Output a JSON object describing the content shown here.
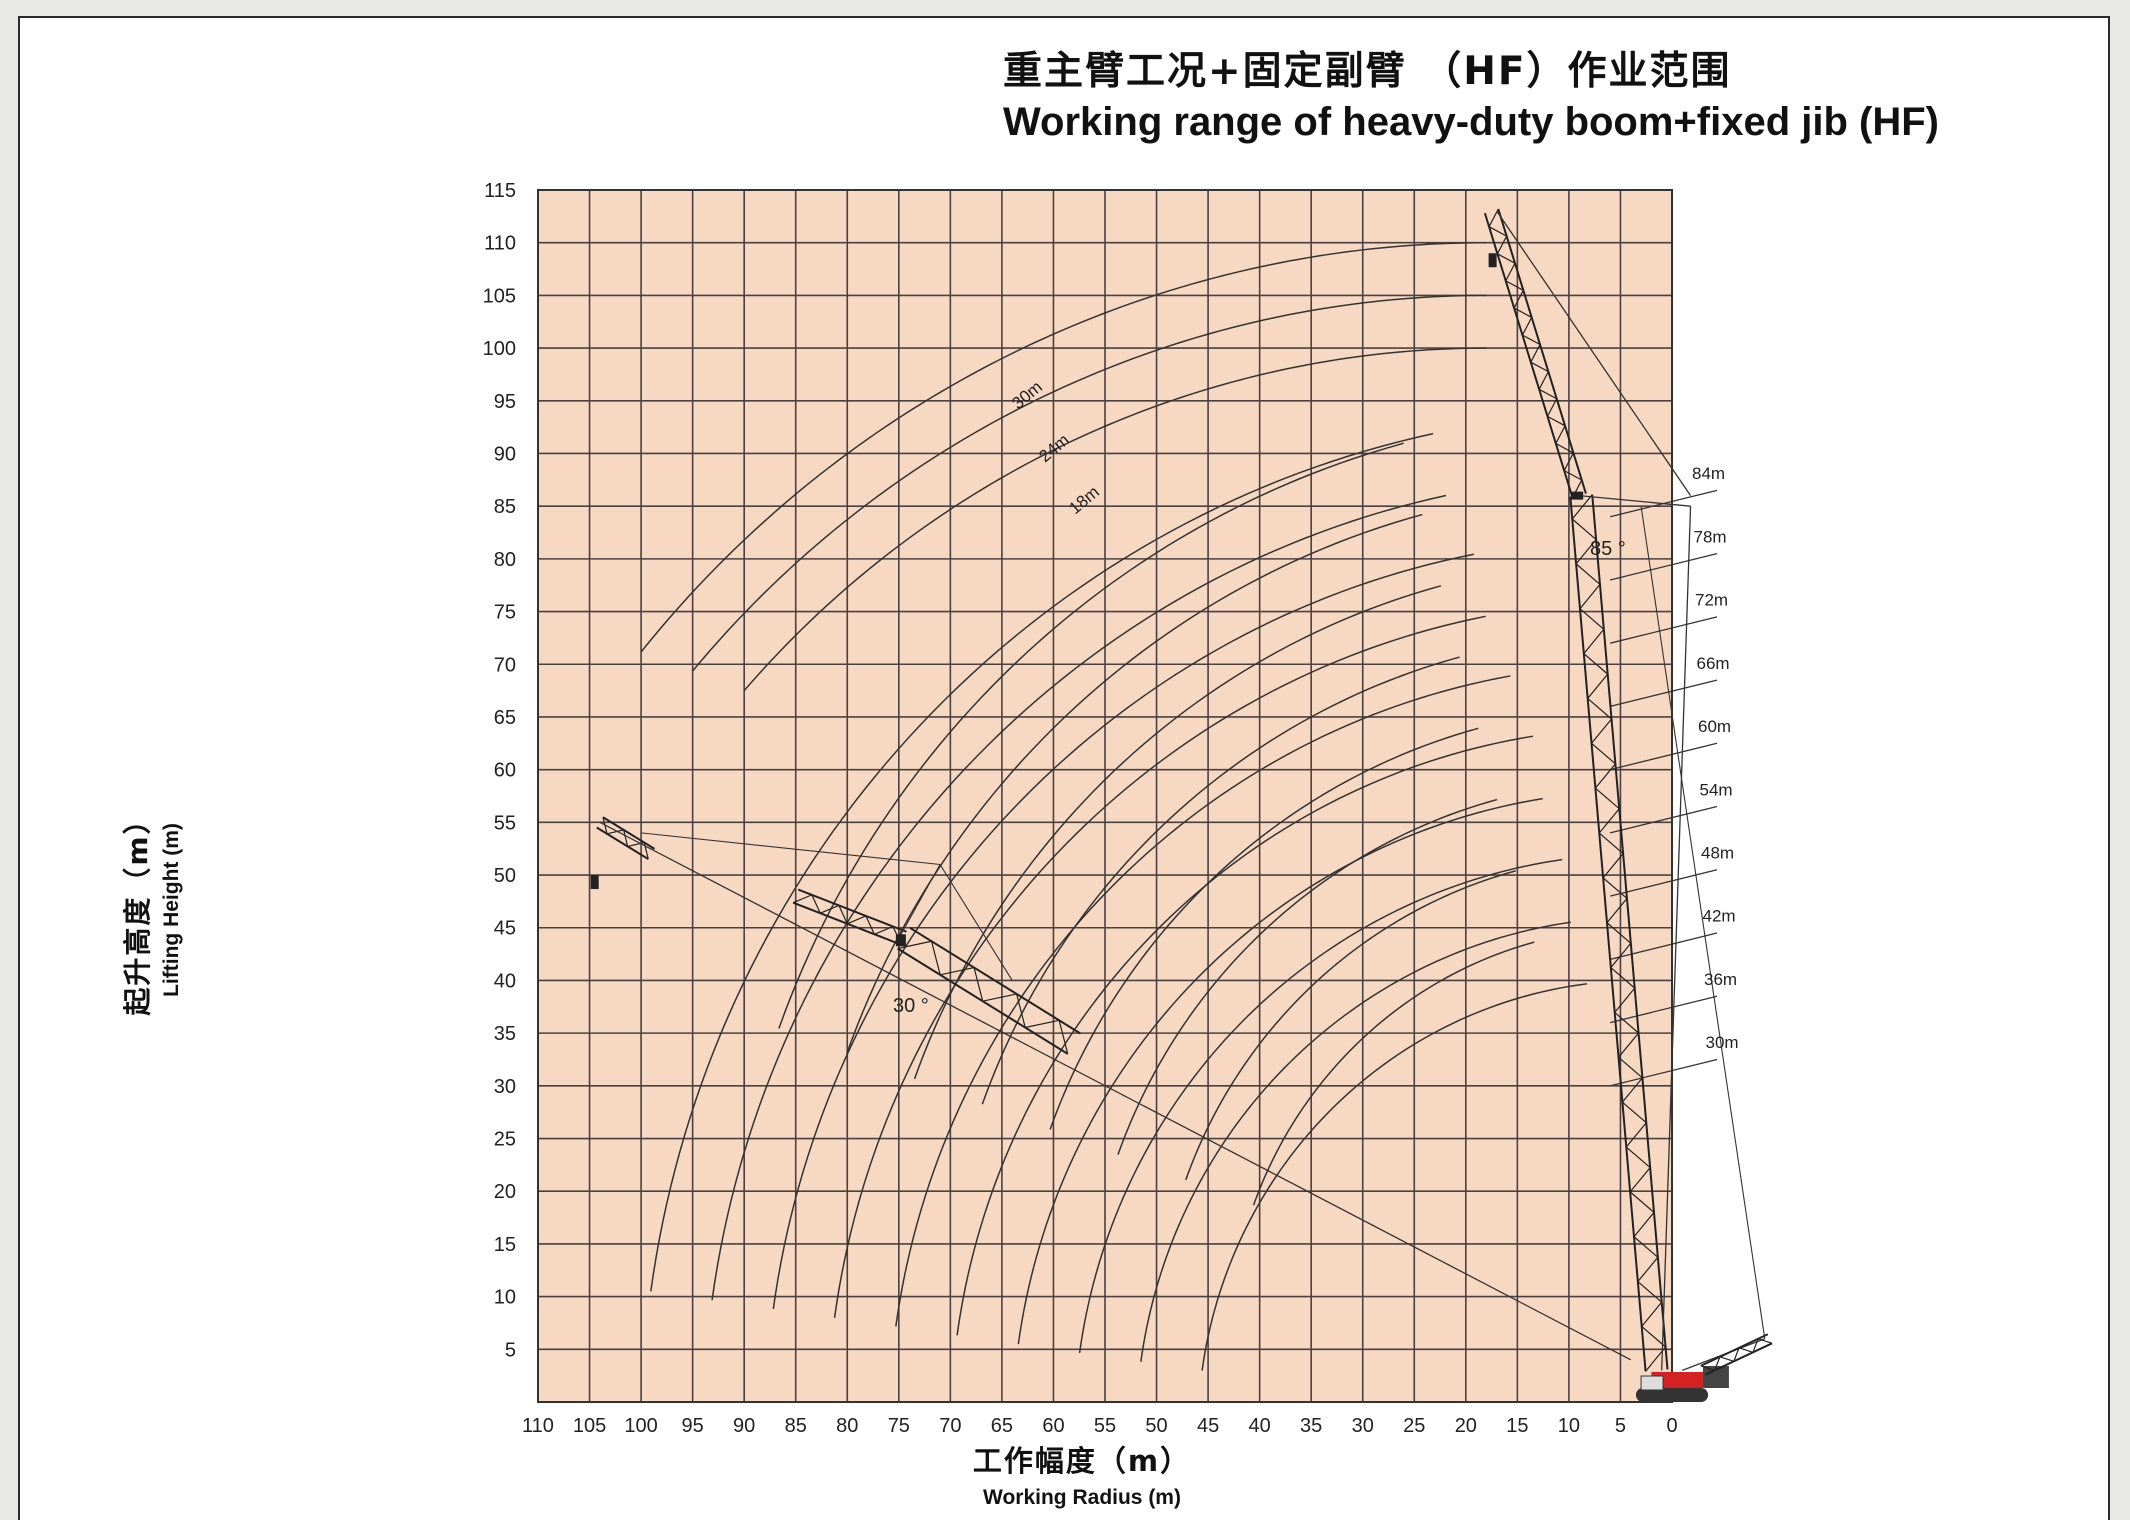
{
  "title": {
    "cn": "重主臂工况+固定副臂 （HF）作业范围",
    "en": "Working range of heavy-duty boom+fixed jib (HF)"
  },
  "axes": {
    "y_label_cn": "起升高度（m）",
    "y_label_en": "Lifting Height (m)",
    "x_label_cn": "工作幅度（m）",
    "x_label_en": "Working Radius (m)",
    "x_ticks": [
      "110",
      "105",
      "100",
      "95",
      "90",
      "85",
      "80",
      "75",
      "70",
      "65",
      "60",
      "55",
      "50",
      "45",
      "40",
      "35",
      "30",
      "25",
      "20",
      "15",
      "10",
      "5",
      "0"
    ],
    "y_ticks": [
      "115",
      "110",
      "105",
      "100",
      "95",
      "90",
      "85",
      "80",
      "75",
      "70",
      "65",
      "60",
      "55",
      "50",
      "45",
      "40",
      "35",
      "30",
      "25",
      "20",
      "15",
      "10",
      "5"
    ]
  },
  "chart_data": {
    "type": "line",
    "x_axis_reversed": true,
    "xlim": [
      110,
      0
    ],
    "ylim": [
      0,
      115
    ],
    "grid": true,
    "background_color": "#f7d8c2",
    "boom_length_labels": [
      "84m",
      "78m",
      "72m",
      "66m",
      "60m",
      "54m",
      "48m",
      "42m",
      "36m",
      "30m"
    ],
    "jib_length_labels": [
      "30m",
      "24m",
      "18m"
    ],
    "boom_angle_label": "85 °",
    "jib_angle_label": "30 °",
    "boom_arcs": [
      {
        "label": "30m",
        "radius": 30
      },
      {
        "label": "36m",
        "radius": 36
      },
      {
        "label": "42m",
        "radius": 42
      },
      {
        "label": "48m",
        "radius": 48
      },
      {
        "label": "54m",
        "radius": 54
      },
      {
        "label": "60m",
        "radius": 60
      },
      {
        "label": "66m",
        "radius": 66
      },
      {
        "label": "72m",
        "radius": 72
      },
      {
        "label": "78m",
        "radius": 78
      },
      {
        "label": "84m",
        "radius": 84
      }
    ],
    "jib_arcs": [
      {
        "label": "18m",
        "max_height": 100
      },
      {
        "label": "24m",
        "max_height": 105
      },
      {
        "label": "30m",
        "max_height": 110
      }
    ]
  },
  "colors": {
    "grid_bg": "#f7d8c2",
    "grid_line": "#4a4040",
    "crane_body": "#d42222"
  }
}
